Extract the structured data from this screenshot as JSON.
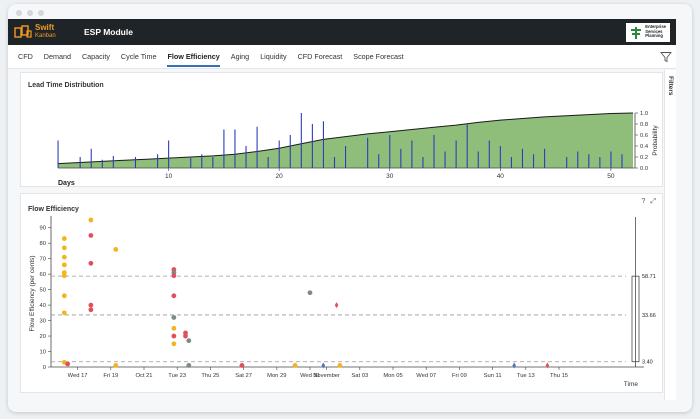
{
  "app": {
    "brand_name": "Swift",
    "brand_sub": "Kanban",
    "module_title": "ESP Module",
    "esp_logo_lines": [
      "Enterprise",
      "Services",
      "Planning"
    ]
  },
  "tabs": [
    {
      "label": "CFD"
    },
    {
      "label": "Demand"
    },
    {
      "label": "Capacity"
    },
    {
      "label": "Cycle Time"
    },
    {
      "label": "Flow Efficiency",
      "active": true
    },
    {
      "label": "Aging"
    },
    {
      "label": "Liquidity"
    },
    {
      "label": "CFD Forecast"
    },
    {
      "label": "Scope Forecast"
    }
  ],
  "sidebar": {
    "filters_label": "Filters"
  },
  "panels": {
    "lead_time": {
      "title": "Lead Time Distribution"
    },
    "flow_eff": {
      "title": "Flow Efficiency",
      "help_icon": "?",
      "expand_icon": "⤢"
    }
  },
  "colors": {
    "appbar": "#1f2429",
    "brand_orange": "#f39b21",
    "area_fill": "#8fbe7a",
    "bar_blue": "#2c3fb8",
    "point_red": "#e0505b",
    "point_yellow": "#f2b51c",
    "point_grey": "#7d8a8a",
    "point_blue": "#4a78c0",
    "accent": "#3a6fb5"
  },
  "chart_data": [
    {
      "type": "area",
      "title": "Lead Time Distribution",
      "xlabel": "Days",
      "ylabel": "Probability",
      "xlim": [
        0,
        52
      ],
      "ylim": [
        0,
        1.0
      ],
      "xticks": [
        10,
        20,
        30,
        40,
        50
      ],
      "yticks": [
        0.0,
        0.2,
        0.4,
        0.6,
        0.8,
        1.0
      ],
      "cumulative": {
        "x": [
          0,
          2,
          4,
          6,
          8,
          10,
          12,
          14,
          16,
          18,
          20,
          22,
          24,
          26,
          28,
          30,
          32,
          34,
          36,
          38,
          40,
          42,
          44,
          46,
          48,
          50,
          52
        ],
        "y": [
          0.08,
          0.1,
          0.12,
          0.14,
          0.16,
          0.18,
          0.2,
          0.22,
          0.25,
          0.3,
          0.36,
          0.44,
          0.52,
          0.57,
          0.62,
          0.66,
          0.7,
          0.74,
          0.78,
          0.83,
          0.87,
          0.9,
          0.93,
          0.95,
          0.97,
          0.99,
          1.0
        ]
      },
      "bars": {
        "x": [
          0,
          2,
          3,
          4,
          5,
          7,
          9,
          10,
          12,
          13,
          14,
          15,
          16,
          17,
          18,
          19,
          20,
          21,
          22,
          23,
          24,
          25,
          26,
          28,
          29,
          30,
          31,
          32,
          33,
          34,
          35,
          36,
          37,
          38,
          39,
          40,
          41,
          42,
          43,
          44,
          46,
          47,
          48,
          49,
          50,
          51
        ],
        "y": [
          0.5,
          0.2,
          0.35,
          0.15,
          0.22,
          0.2,
          0.25,
          0.5,
          0.18,
          0.25,
          0.2,
          0.7,
          0.7,
          0.4,
          0.75,
          0.2,
          0.5,
          0.6,
          1.0,
          0.8,
          0.85,
          0.2,
          0.4,
          0.55,
          0.25,
          0.6,
          0.35,
          0.5,
          0.2,
          0.6,
          0.3,
          0.5,
          0.8,
          0.3,
          0.5,
          0.4,
          0.2,
          0.35,
          0.25,
          0.35,
          0.2,
          0.3,
          0.25,
          0.2,
          0.3,
          0.25
        ]
      }
    },
    {
      "type": "scatter",
      "title": "Flow Efficiency",
      "xlabel": "Time",
      "ylabel": "Flow Efficiency (per cents)",
      "ylim": [
        0,
        95
      ],
      "yticks": [
        0,
        10,
        20,
        30,
        40,
        50,
        60,
        70,
        80,
        90
      ],
      "xlim_days": [
        0,
        59
      ],
      "xtick_labels": [
        {
          "day": 1,
          "label": "Wed 17"
        },
        {
          "day": 3,
          "label": "Fri 19"
        },
        {
          "day": 5,
          "label": "Oct 21"
        },
        {
          "day": 7,
          "label": "Tue 23"
        },
        {
          "day": 9,
          "label": "Thu 25"
        },
        {
          "day": 11,
          "label": "Sat 27"
        },
        {
          "day": 13,
          "label": "Mon 29"
        },
        {
          "day": 15,
          "label": "Wed 31"
        },
        {
          "day": 16,
          "label": "November"
        },
        {
          "day": 18,
          "label": "Sat 03"
        },
        {
          "day": 20,
          "label": "Mon 05"
        },
        {
          "day": 22,
          "label": "Wed 07"
        },
        {
          "day": 24,
          "label": "Fri 09"
        },
        {
          "day": 26,
          "label": "Sun 11"
        },
        {
          "day": 28,
          "label": "Tue 13"
        },
        {
          "day": 30,
          "label": "Thu 15"
        }
      ],
      "reference_lines": [
        {
          "label": "58.71",
          "value": 58.71
        },
        {
          "label": "33.66",
          "value": 33.66
        },
        {
          "label": "3.40",
          "value": 3.4
        }
      ],
      "points": [
        {
          "day": 0.2,
          "y": 83,
          "color": "yellow"
        },
        {
          "day": 0.2,
          "y": 77,
          "color": "yellow"
        },
        {
          "day": 0.2,
          "y": 71,
          "color": "yellow"
        },
        {
          "day": 0.2,
          "y": 66,
          "color": "yellow"
        },
        {
          "day": 0.2,
          "y": 61,
          "color": "yellow"
        },
        {
          "day": 0.2,
          "y": 59,
          "color": "yellow"
        },
        {
          "day": 0.2,
          "y": 46,
          "color": "yellow"
        },
        {
          "day": 0.2,
          "y": 35,
          "color": "yellow"
        },
        {
          "day": 0.2,
          "y": 3,
          "color": "yellow"
        },
        {
          "day": 0.4,
          "y": 2,
          "color": "red"
        },
        {
          "day": 1.8,
          "y": 95,
          "color": "yellow"
        },
        {
          "day": 1.8,
          "y": 85,
          "color": "red"
        },
        {
          "day": 1.8,
          "y": 67,
          "color": "red"
        },
        {
          "day": 1.8,
          "y": 40,
          "color": "red"
        },
        {
          "day": 1.8,
          "y": 37,
          "color": "red"
        },
        {
          "day": 3.3,
          "y": 76,
          "color": "yellow"
        },
        {
          "day": 3.3,
          "y": 1,
          "color": "yellow"
        },
        {
          "day": 6.8,
          "y": 63,
          "color": "red"
        },
        {
          "day": 6.8,
          "y": 61,
          "color": "grey"
        },
        {
          "day": 6.8,
          "y": 59,
          "color": "red"
        },
        {
          "day": 6.8,
          "y": 46,
          "color": "red"
        },
        {
          "day": 6.8,
          "y": 32,
          "color": "grey"
        },
        {
          "day": 6.8,
          "y": 25,
          "color": "yellow"
        },
        {
          "day": 6.8,
          "y": 20,
          "color": "red"
        },
        {
          "day": 6.8,
          "y": 15,
          "color": "yellow"
        },
        {
          "day": 7.5,
          "y": 22,
          "color": "red"
        },
        {
          "day": 7.5,
          "y": 20,
          "color": "red"
        },
        {
          "day": 7.7,
          "y": 17,
          "color": "grey"
        },
        {
          "day": 7.7,
          "y": 1,
          "color": "grey"
        },
        {
          "day": 10.9,
          "y": 1,
          "color": "red"
        },
        {
          "day": 15,
          "y": 48,
          "color": "grey"
        },
        {
          "day": 16.6,
          "y": 40,
          "color": "red"
        },
        {
          "day": 14.1,
          "y": 1,
          "color": "yellow"
        },
        {
          "day": 15.8,
          "y": 1,
          "color": "blue"
        },
        {
          "day": 16.8,
          "y": 1,
          "color": "yellow"
        },
        {
          "day": 27.3,
          "y": 1,
          "color": "blue"
        },
        {
          "day": 29.3,
          "y": 1,
          "color": "red"
        }
      ]
    }
  ]
}
